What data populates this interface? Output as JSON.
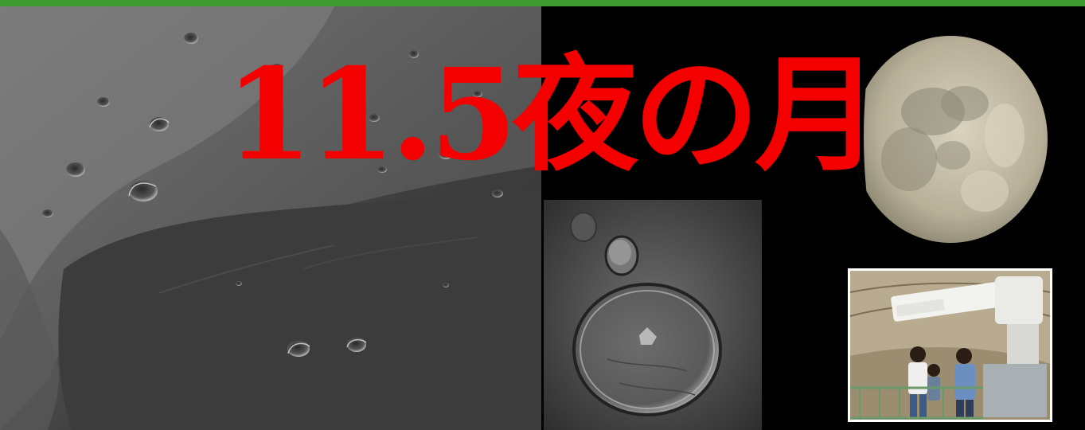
{
  "title": "11.5夜の月",
  "colors": {
    "title": "#f50000",
    "top_bar": "#3c9a2e",
    "background": "#000000"
  },
  "images": {
    "lunar_surface": "moon-surface-closeup",
    "crater": "crater-closeup",
    "moon_phase": "waxing-gibbous-moon",
    "observatory": "telescope-observers-photo"
  }
}
